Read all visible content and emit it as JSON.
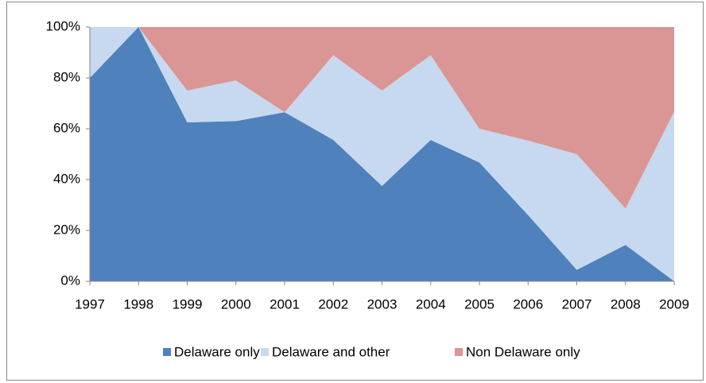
{
  "chart_data": {
    "type": "stacked-area-100",
    "categories": [
      "1997",
      "1998",
      "1999",
      "2000",
      "2001",
      "2002",
      "2003",
      "2004",
      "2005",
      "2006",
      "2007",
      "2008",
      "2009"
    ],
    "series": [
      {
        "name": "Delaware only",
        "color": "#4f81bd",
        "values": [
          80,
          100,
          62.5,
          63,
          66.5,
          55.6,
          37.5,
          55.6,
          46.7,
          26,
          4.5,
          14.3,
          0
        ]
      },
      {
        "name": "Delaware and other",
        "color": "#c6d9f0",
        "values": [
          20,
          0,
          12.5,
          16,
          0,
          33.3,
          37.5,
          33.3,
          13.3,
          29.3,
          45.5,
          14.3,
          66.7
        ]
      },
      {
        "name": "Non Delaware only",
        "color": "#d99694",
        "values": [
          0,
          0,
          25,
          21,
          33.5,
          11.1,
          25,
          11.1,
          40,
          44.7,
          50,
          71.4,
          33.3
        ]
      }
    ],
    "ylim": [
      0,
      100
    ],
    "yticks": [
      {
        "value": 0,
        "label": "0%"
      },
      {
        "value": 20,
        "label": "20%"
      },
      {
        "value": 40,
        "label": "40%"
      },
      {
        "value": 60,
        "label": "60%"
      },
      {
        "value": 80,
        "label": "80%"
      },
      {
        "value": 100,
        "label": "100%"
      }
    ],
    "grid": false,
    "legend": "bottom"
  }
}
